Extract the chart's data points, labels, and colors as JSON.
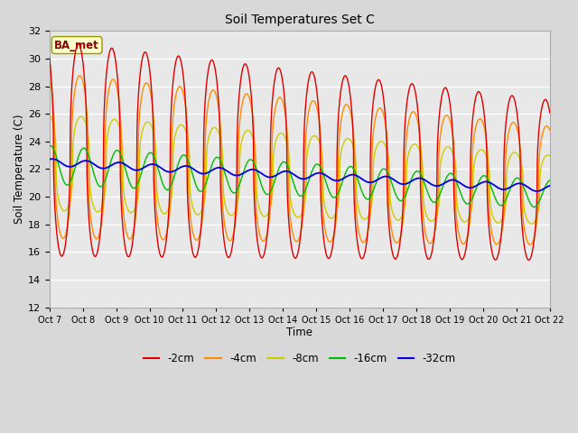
{
  "title": "Soil Temperatures Set C",
  "xlabel": "Time",
  "ylabel": "Soil Temperature (C)",
  "ylim": [
    12,
    32
  ],
  "xlim": [
    0,
    15
  ],
  "annotation": "BA_met",
  "tick_labels": [
    "Oct 7",
    "Oct 8",
    "Oct 9",
    "Oct 10",
    "Oct 11",
    "Oct 12",
    "Oct 13",
    "Oct 14",
    "Oct 15",
    "Oct 16",
    "Oct 17",
    "Oct 18",
    "Oct 19",
    "Oct 20",
    "Oct 21",
    "Oct 22"
  ],
  "colors": {
    "-2cm": "#dd0000",
    "-4cm": "#ff8c00",
    "-8cm": "#cccc00",
    "-16cm": "#00bb00",
    "-32cm": "#0000dd"
  },
  "lw": {
    "-2cm": 1.0,
    "-4cm": 1.0,
    "-8cm": 1.0,
    "-16cm": 1.0,
    "-32cm": 1.3
  },
  "background_color": "#e0e0e0",
  "plot_bg_color": "#e8e8e8",
  "grid_color": "#ffffff",
  "fig_bg_color": "#d8d8d8",
  "legend_labels": [
    "-2cm",
    "-4cm",
    "-8cm",
    "-16cm",
    "-32cm"
  ]
}
